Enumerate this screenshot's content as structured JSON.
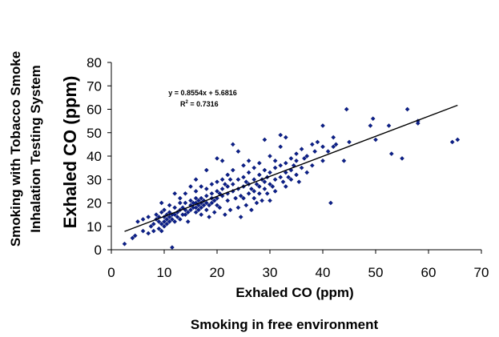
{
  "chart_data": {
    "type": "scatter",
    "xlabel": "Exhaled CO (ppm)",
    "ylabel": "Exhaled CO (ppm)",
    "outer_xlabel": "Smoking in free environment",
    "outer_ylabel_line1": "Smoking with Tobacco Smoke",
    "outer_ylabel_line2": "Inhalation Testing System",
    "xlim": [
      0,
      70
    ],
    "ylim": [
      0,
      80
    ],
    "xticks": [
      "0",
      "10",
      "20",
      "30",
      "40",
      "50",
      "60",
      "70"
    ],
    "yticks": [
      "0",
      "10",
      "20",
      "30",
      "40",
      "50",
      "60",
      "70",
      "80"
    ],
    "trendline": {
      "slope": 0.8554,
      "intercept": 5.6816,
      "x_range": [
        2.5,
        65.5
      ]
    },
    "equation_text": "y = 0.8554x + 5.6816",
    "r2_prefix": "R",
    "r2_sup": "2",
    "r2_value": " = 0.7316",
    "grid": false,
    "legend": "none",
    "marker_color": "#0b1f8a",
    "points": [
      [
        2.5,
        2.5
      ],
      [
        4,
        5
      ],
      [
        4.5,
        6
      ],
      [
        5,
        12
      ],
      [
        6,
        8
      ],
      [
        6,
        13
      ],
      [
        7,
        7
      ],
      [
        7,
        14
      ],
      [
        7.5,
        10
      ],
      [
        8,
        8
      ],
      [
        8,
        11
      ],
      [
        8.5,
        13
      ],
      [
        8.5,
        15
      ],
      [
        9,
        9
      ],
      [
        9,
        12
      ],
      [
        9,
        14
      ],
      [
        9.5,
        8
      ],
      [
        9.5,
        11
      ],
      [
        9.5,
        16
      ],
      [
        9.5,
        20
      ],
      [
        10,
        10
      ],
      [
        10,
        12
      ],
      [
        10,
        14
      ],
      [
        10,
        17
      ],
      [
        10.5,
        13
      ],
      [
        10.5,
        15
      ],
      [
        10.5,
        11
      ],
      [
        11,
        12
      ],
      [
        11,
        14
      ],
      [
        11,
        16
      ],
      [
        11,
        19
      ],
      [
        11.5,
        13
      ],
      [
        11.5,
        15
      ],
      [
        11.5,
        1
      ],
      [
        12,
        12
      ],
      [
        12,
        15
      ],
      [
        12,
        18
      ],
      [
        12,
        24
      ],
      [
        12.5,
        14
      ],
      [
        12.5,
        16
      ],
      [
        13,
        13
      ],
      [
        13,
        17
      ],
      [
        13,
        20
      ],
      [
        13,
        22
      ],
      [
        13.5,
        15
      ],
      [
        13.5,
        18
      ],
      [
        14,
        15
      ],
      [
        14,
        17
      ],
      [
        14,
        20
      ],
      [
        14,
        24
      ],
      [
        14.5,
        12
      ],
      [
        14.5,
        16
      ],
      [
        15,
        17
      ],
      [
        15,
        19
      ],
      [
        15,
        21
      ],
      [
        15,
        27
      ],
      [
        15.5,
        18
      ],
      [
        15.5,
        20
      ],
      [
        16,
        16
      ],
      [
        16,
        18
      ],
      [
        16,
        20
      ],
      [
        16,
        22
      ],
      [
        16,
        25
      ],
      [
        16,
        30
      ],
      [
        16.5,
        17
      ],
      [
        16.5,
        19
      ],
      [
        16.5,
        21
      ],
      [
        17,
        18
      ],
      [
        17,
        20
      ],
      [
        17,
        22
      ],
      [
        17,
        27
      ],
      [
        17,
        15
      ],
      [
        17.5,
        19
      ],
      [
        17.5,
        21
      ],
      [
        18,
        17
      ],
      [
        18,
        20
      ],
      [
        18,
        23
      ],
      [
        18,
        26
      ],
      [
        18,
        34
      ],
      [
        18.5,
        14
      ],
      [
        18.5,
        19
      ],
      [
        19,
        20
      ],
      [
        19,
        22
      ],
      [
        19,
        24
      ],
      [
        19,
        28
      ],
      [
        19.5,
        16
      ],
      [
        19.5,
        21
      ],
      [
        20,
        19
      ],
      [
        20,
        22
      ],
      [
        20,
        25
      ],
      [
        20,
        29
      ],
      [
        20,
        39
      ],
      [
        20.5,
        24
      ],
      [
        20.5,
        18
      ],
      [
        21,
        23
      ],
      [
        21,
        26
      ],
      [
        21,
        30
      ],
      [
        21,
        38
      ],
      [
        21.5,
        28
      ],
      [
        21.5,
        15
      ],
      [
        22,
        21
      ],
      [
        22,
        24
      ],
      [
        22,
        27
      ],
      [
        22,
        32
      ],
      [
        22.5,
        17
      ],
      [
        22.5,
        30
      ],
      [
        23,
        25
      ],
      [
        23,
        28
      ],
      [
        23,
        34
      ],
      [
        23,
        45
      ],
      [
        23.5,
        22
      ],
      [
        24,
        18
      ],
      [
        24,
        26
      ],
      [
        24,
        30
      ],
      [
        24,
        42
      ],
      [
        24.5,
        14
      ],
      [
        24.5,
        23
      ],
      [
        25,
        22
      ],
      [
        25,
        27
      ],
      [
        25,
        31
      ],
      [
        25,
        36
      ],
      [
        25.5,
        19
      ],
      [
        25.5,
        29
      ],
      [
        26,
        24
      ],
      [
        26,
        28
      ],
      [
        26,
        33
      ],
      [
        26,
        38
      ],
      [
        26.5,
        17
      ],
      [
        26.5,
        26
      ],
      [
        27,
        22
      ],
      [
        27,
        25
      ],
      [
        27,
        30
      ],
      [
        27,
        35
      ],
      [
        27.5,
        20
      ],
      [
        27.5,
        28
      ],
      [
        28,
        24
      ],
      [
        28,
        27
      ],
      [
        28,
        32
      ],
      [
        28,
        37
      ],
      [
        28.5,
        21
      ],
      [
        28.5,
        30
      ],
      [
        29,
        26
      ],
      [
        29,
        29
      ],
      [
        29,
        34
      ],
      [
        29,
        47
      ],
      [
        29.5,
        24
      ],
      [
        29.5,
        31
      ],
      [
        30,
        28
      ],
      [
        30,
        33
      ],
      [
        30,
        40
      ],
      [
        30,
        21
      ],
      [
        30.5,
        27
      ],
      [
        31,
        30
      ],
      [
        31,
        35
      ],
      [
        31,
        38
      ],
      [
        31,
        25
      ],
      [
        32,
        31
      ],
      [
        32,
        36
      ],
      [
        32,
        44
      ],
      [
        32,
        49
      ],
      [
        32.5,
        29
      ],
      [
        33,
        33
      ],
      [
        33,
        37
      ],
      [
        33,
        48
      ],
      [
        33,
        27
      ],
      [
        33.5,
        31
      ],
      [
        34,
        34
      ],
      [
        34,
        39
      ],
      [
        34,
        30
      ],
      [
        34.5,
        36
      ],
      [
        35,
        32
      ],
      [
        35,
        41
      ],
      [
        35,
        38
      ],
      [
        35.5,
        29
      ],
      [
        36,
        35
      ],
      [
        36,
        43
      ],
      [
        36.5,
        39
      ],
      [
        37,
        40
      ],
      [
        37,
        33
      ],
      [
        38,
        45
      ],
      [
        38,
        36
      ],
      [
        38.5,
        42
      ],
      [
        39,
        46
      ],
      [
        40,
        44
      ],
      [
        40,
        38
      ],
      [
        40,
        53
      ],
      [
        41,
        42
      ],
      [
        41.5,
        20
      ],
      [
        42,
        48
      ],
      [
        42,
        44
      ],
      [
        42.5,
        45
      ],
      [
        44,
        38
      ],
      [
        44.5,
        60
      ],
      [
        45,
        46
      ],
      [
        49,
        53
      ],
      [
        49.5,
        56
      ],
      [
        50,
        47
      ],
      [
        52.5,
        53
      ],
      [
        53,
        41
      ],
      [
        55,
        39
      ],
      [
        56,
        60
      ],
      [
        58,
        55
      ],
      [
        58,
        54
      ],
      [
        64.5,
        46
      ],
      [
        65.5,
        47
      ]
    ]
  }
}
